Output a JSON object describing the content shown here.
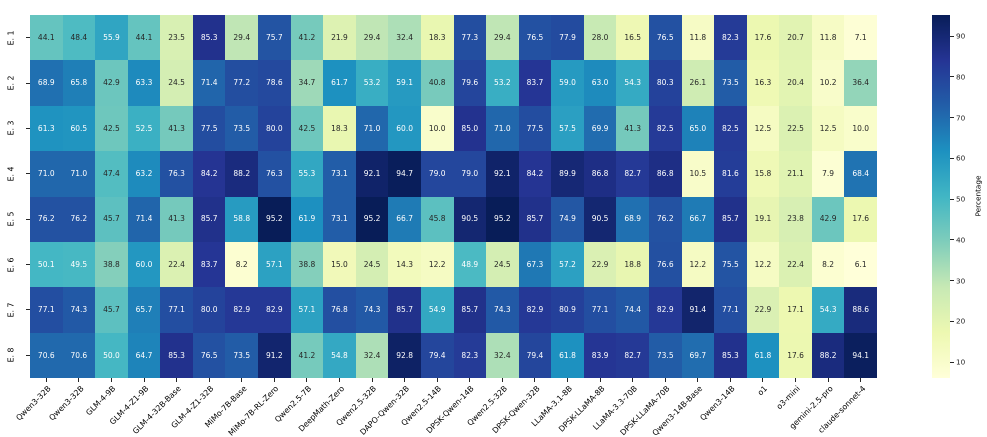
{
  "chart_data": {
    "type": "heatmap",
    "title": "",
    "rows": [
      "E. 1",
      "E. 2",
      "E. 3",
      "E. 4",
      "E. 5",
      "E. 6",
      "E. 7",
      "E. 8"
    ],
    "columns": [
      "Qwen3-32B",
      "Qwen3-32B",
      "GLM-4-9B",
      "GLM-4-Z1-9B",
      "GLM-4-32B-Base",
      "GLM-4-Z1-32B",
      "MiMo-7B-Base",
      "MiMo-7B-RL-Zero",
      "Qwen2.5-7B",
      "DeepMath-Zero",
      "Qwen2.5-32B",
      "DAPO-Qwen-32B",
      "Qwen2.5-14B",
      "DPSK-Qwen-14B",
      "Qwen2.5-32B",
      "DPSK-Qwen-32B",
      "LLaMA-3.1-8B",
      "DPSK-LLaMA-8B",
      "LLaMA-3.3-70B",
      "DPSK-LLaMA-70B",
      "Qwen3-14B-Base",
      "Qwen3-14B",
      "o1",
      "o3-mini",
      "gemini-2.5-pro",
      "claude-sonnet-4"
    ],
    "values": [
      [
        44.1,
        48.4,
        55.9,
        44.1,
        23.5,
        85.3,
        29.4,
        75.7,
        41.2,
        21.9,
        29.4,
        32.4,
        18.3,
        77.3,
        29.4,
        76.5,
        77.9,
        28.0,
        16.5,
        76.5,
        11.8,
        82.3,
        17.6,
        20.7,
        11.8,
        7.1
      ],
      [
        68.9,
        65.8,
        42.9,
        63.3,
        24.5,
        71.4,
        77.2,
        78.6,
        34.7,
        61.7,
        53.2,
        59.1,
        40.8,
        79.6,
        53.2,
        83.7,
        59.0,
        63.0,
        54.3,
        80.3,
        26.1,
        73.5,
        16.3,
        20.4,
        10.2,
        36.4
      ],
      [
        61.3,
        60.5,
        42.5,
        52.5,
        41.3,
        77.5,
        73.5,
        80.0,
        42.5,
        18.3,
        71.0,
        60.0,
        10.0,
        85.0,
        71.0,
        77.5,
        57.5,
        69.9,
        41.3,
        82.5,
        65.0,
        82.5,
        12.5,
        22.5,
        12.5,
        10.0
      ],
      [
        71.0,
        71.0,
        47.4,
        63.2,
        76.3,
        84.2,
        88.2,
        76.3,
        55.3,
        73.1,
        92.1,
        94.7,
        79.0,
        79.0,
        92.1,
        84.2,
        89.9,
        86.8,
        82.7,
        86.8,
        10.5,
        81.6,
        15.8,
        21.1,
        7.9,
        68.4
      ],
      [
        76.2,
        76.2,
        45.7,
        71.4,
        41.3,
        85.7,
        58.8,
        95.2,
        61.9,
        73.1,
        95.2,
        66.7,
        45.8,
        90.5,
        95.2,
        85.7,
        74.9,
        90.5,
        68.9,
        76.2,
        66.7,
        85.7,
        19.1,
        23.8,
        42.9,
        17.6
      ],
      [
        50.1,
        49.5,
        38.8,
        60.0,
        22.4,
        83.7,
        8.2,
        57.1,
        38.8,
        15.0,
        24.5,
        14.3,
        12.2,
        48.9,
        24.5,
        67.3,
        57.2,
        22.9,
        18.8,
        76.6,
        12.2,
        75.5,
        12.2,
        22.4,
        8.2,
        6.1
      ],
      [
        77.1,
        74.3,
        45.7,
        65.7,
        77.1,
        80.0,
        82.9,
        82.9,
        57.1,
        76.8,
        74.3,
        85.7,
        54.9,
        85.7,
        74.3,
        82.9,
        80.9,
        77.1,
        74.4,
        82.9,
        91.4,
        77.1,
        22.9,
        17.1,
        54.3,
        88.6
      ],
      [
        70.6,
        70.6,
        50.0,
        64.7,
        85.3,
        76.5,
        73.5,
        91.2,
        41.2,
        54.8,
        32.4,
        92.8,
        79.4,
        82.3,
        32.4,
        79.4,
        61.8,
        83.9,
        82.7,
        73.5,
        69.7,
        85.3,
        61.8,
        17.6,
        88.2,
        94.1
      ]
    ],
    "vmin": 6.1,
    "vmax": 95.2,
    "colormap": "YlGnBu",
    "colormap_stops": [
      "#ffffd9",
      "#edf8b1",
      "#c7e9b4",
      "#7fcdbb",
      "#41b6c4",
      "#1d91c0",
      "#225ea8",
      "#253494",
      "#081d58"
    ],
    "annotation_text_dark": "#262626",
    "annotation_text_light": "#ffffff",
    "colorbar": {
      "label": "Percentage",
      "ticks": [
        10,
        20,
        30,
        40,
        50,
        60,
        70,
        80,
        90
      ]
    },
    "layout": {
      "grid": false,
      "x_tick_rotation": 45,
      "y_tick_rotation": 90,
      "colorbar_position": "right"
    }
  }
}
